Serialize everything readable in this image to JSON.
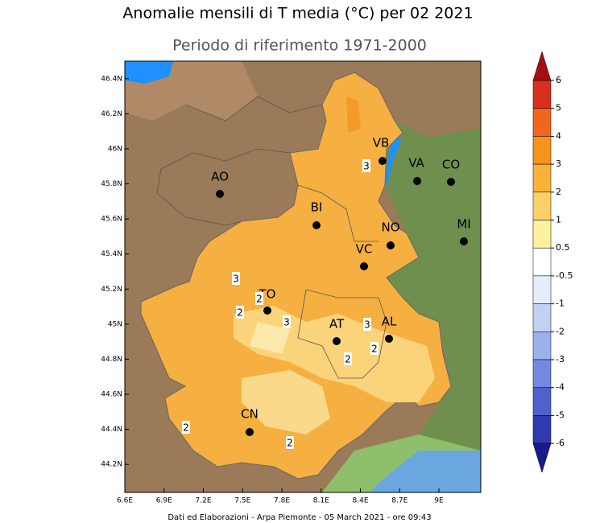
{
  "map": {
    "title": "Anomalie mensili di T media (°C) per 02 2021",
    "subtitle": "Periodo di riferimento 1971-2000",
    "lonlim": [
      6.6,
      9.32
    ],
    "latlim": [
      44.04,
      46.5
    ],
    "lonticks": [
      {
        "value": 6.6,
        "label": "6.6E"
      },
      {
        "value": 6.9,
        "label": "6.9E"
      },
      {
        "value": 7.2,
        "label": "7.2E"
      },
      {
        "value": 7.5,
        "label": "7.5E"
      },
      {
        "value": 7.8,
        "label": "7.8E"
      },
      {
        "value": 8.1,
        "label": "8.1E"
      },
      {
        "value": 8.4,
        "label": "8.4E"
      },
      {
        "value": 8.7,
        "label": "8.7E"
      },
      {
        "value": 9,
        "label": "9E"
      }
    ],
    "latticks": [
      {
        "value": 46.4,
        "label": "46.4N"
      },
      {
        "value": 46.2,
        "label": "46.2N"
      },
      {
        "value": 46,
        "label": "46N"
      },
      {
        "value": 45.8,
        "label": "45.8N"
      },
      {
        "value": 45.6,
        "label": "45.6N"
      },
      {
        "value": 45.4,
        "label": "45.4N"
      },
      {
        "value": 45.2,
        "label": "45.2N"
      },
      {
        "value": 45,
        "label": "45N"
      },
      {
        "value": 44.8,
        "label": "44.8N"
      },
      {
        "value": 44.6,
        "label": "44.6N"
      },
      {
        "value": 44.4,
        "label": "44.4N"
      },
      {
        "value": 44.2,
        "label": "44.2N"
      }
    ],
    "cities": [
      "VB",
      "VA",
      "CO",
      "AO",
      "BI",
      "NO",
      "MI",
      "VC",
      "TO",
      "AT",
      "AL",
      "CN"
    ],
    "contour_labels": [
      3,
      3,
      2,
      2,
      3,
      3,
      2,
      2,
      2,
      2
    ],
    "colorbar": {
      "levels": [
        6,
        5,
        4,
        3,
        2,
        1,
        0.5,
        -0.5,
        -1,
        -2,
        -3,
        -4,
        -5,
        -6
      ],
      "colors": [
        "#a50f0f",
        "#d7301f",
        "#f2651c",
        "#f7941d",
        "#f9b13a",
        "#fbd06a",
        "#fdf0a0",
        "#ffffff",
        "#e6ecfa",
        "#c2d0f3",
        "#9bb0ec",
        "#7289e0",
        "#4e62cc",
        "#2e3ab0",
        "#1a1a8c"
      ]
    },
    "footer": "Dati ed Elaborazioni - Arpa Piemonte - 05 March 2021 - ore 09:43"
  }
}
